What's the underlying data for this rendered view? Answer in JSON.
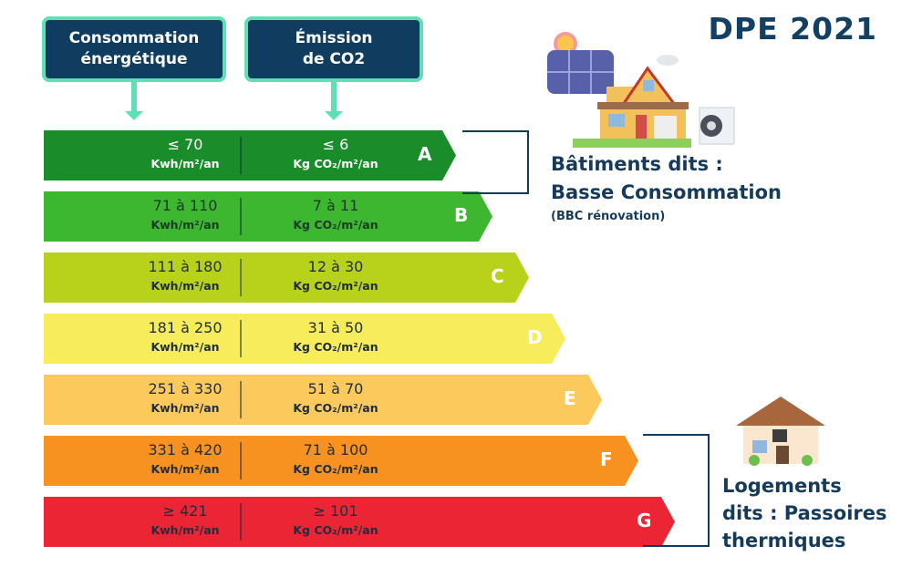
{
  "title": "DPE 2021",
  "headers": {
    "consumption": "Consommation énergétique",
    "emission": "Émission de CO2"
  },
  "classes": [
    {
      "letter": "A",
      "energy": "≤ 70",
      "energy_unit": "Kwh/m²/an",
      "co2": "≤ 6",
      "co2_unit": "Kg CO₂/m²/an",
      "color": "#1a8c2a",
      "text_color": "#ffffff"
    },
    {
      "letter": "B",
      "energy": "71 à 110",
      "energy_unit": "Kwh/m²/an",
      "co2": "7 à 11",
      "co2_unit": "Kg CO₂/m²/an",
      "color": "#3db730",
      "text_color": "#1c3a2a"
    },
    {
      "letter": "C",
      "energy": "111 à 180",
      "energy_unit": "Kwh/m²/an",
      "co2": "12 à 30",
      "co2_unit": "Kg CO₂/m²/an",
      "color": "#b8d21c",
      "text_color": "#1f2d3d"
    },
    {
      "letter": "D",
      "energy": "181 à 250",
      "energy_unit": "Kwh/m²/an",
      "co2": "31 à 50",
      "co2_unit": "Kg CO₂/m²/an",
      "color": "#f6ec5c",
      "text_color": "#1f2d3d"
    },
    {
      "letter": "E",
      "energy": "251 à 330",
      "energy_unit": "Kwh/m²/an",
      "co2": "51 à 70",
      "co2_unit": "Kg CO₂/m²/an",
      "color": "#fbc95c",
      "text_color": "#1f2d3d"
    },
    {
      "letter": "F",
      "energy": "331 à 420",
      "energy_unit": "Kwh/m²/an",
      "co2": "71 à 100",
      "co2_unit": "Kg CO₂/m²/an",
      "color": "#f7911f",
      "text_color": "#1f2d3d"
    },
    {
      "letter": "G",
      "energy": "≥ 421",
      "energy_unit": "Kwh/m²/an",
      "co2": "≥ 101",
      "co2_unit": "Kg CO₂/m²/an",
      "color": "#ec2535",
      "text_color": "#1f2d3d"
    }
  ],
  "bbc": {
    "line1": "Bâtiments dits :",
    "line2": "Basse Consommation",
    "note": "(BBC rénovation)"
  },
  "passoires": {
    "line1": "Logements",
    "line2": "dits : Passoires",
    "line3": "thermiques"
  },
  "icons": {
    "bbc": "eco-house-solar-panel-heat-pump-icon",
    "passoire": "small-house-icon"
  }
}
